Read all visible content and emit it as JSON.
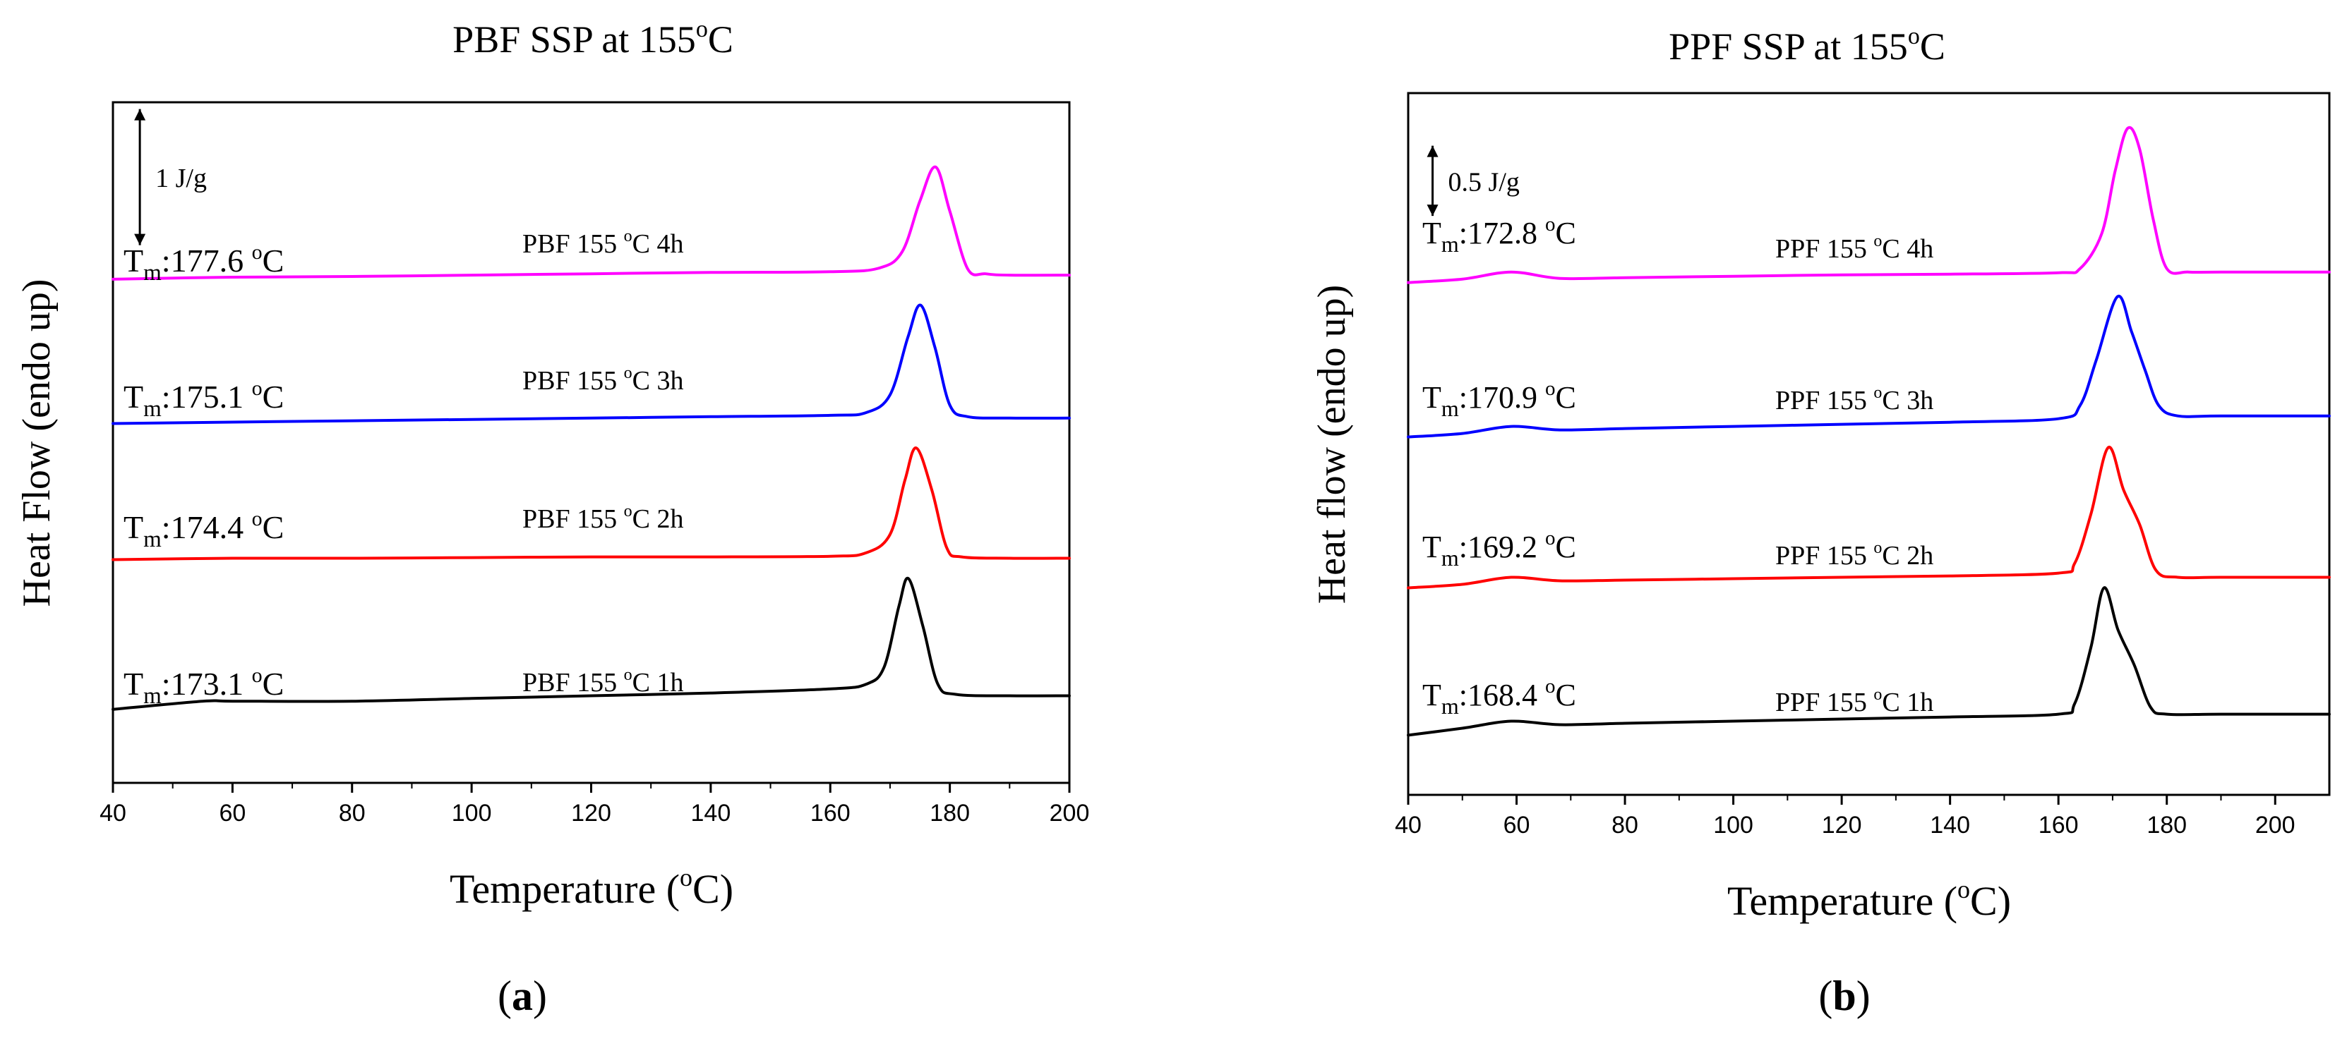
{
  "chart_data": [
    {
      "type": "line",
      "panel_label": "a",
      "title": "PBF SSP at 155°C",
      "title_main": "PBF SSP at 155",
      "title_sup": "o",
      "title_end": "C",
      "xlabel": "Temperature (°C)",
      "xlabel_main": "Temperature (",
      "xlabel_sup": "o",
      "xlabel_end": "C)",
      "ylabel": "Heat Flow (endo up)",
      "xlim": [
        40,
        200
      ],
      "ylim": [
        0,
        10
      ],
      "xticks": [
        40,
        60,
        80,
        100,
        120,
        140,
        160,
        180,
        200
      ],
      "yticks_shown": false,
      "grid": false,
      "scale_bar": {
        "label": "1 J/g",
        "value": 1,
        "y_center": 8.9,
        "x": 44.5
      },
      "series": [
        {
          "name": "PBF 155 °C 4h",
          "sample": "PBF 155 ",
          "deg": "o",
          "rest": "C 4h",
          "color": "#ff00ff",
          "peak_label": "177.6 °C",
          "tm": "177.6 ",
          "x": [
            40,
            60,
            80,
            100,
            120,
            140,
            160,
            168,
            172,
            175,
            177.6,
            180,
            183,
            186,
            190,
            200
          ],
          "y": [
            7.4,
            7.43,
            7.44,
            7.46,
            7.48,
            7.5,
            7.51,
            7.56,
            7.8,
            8.55,
            9.05,
            8.4,
            7.55,
            7.48,
            7.46,
            7.46
          ]
        },
        {
          "name": "PBF 155 °C 3h",
          "sample": "PBF 155 ",
          "deg": "o",
          "rest": "C 3h",
          "color": "#0000ff",
          "peak_label": "175.1 °C",
          "tm": "175.1 ",
          "x": [
            40,
            60,
            80,
            100,
            120,
            140,
            160,
            166,
            170,
            173,
            175.1,
            177.5,
            180,
            183,
            190,
            200
          ],
          "y": [
            5.28,
            5.3,
            5.32,
            5.34,
            5.36,
            5.38,
            5.4,
            5.44,
            5.7,
            6.55,
            7.02,
            6.4,
            5.55,
            5.38,
            5.36,
            5.36
          ]
        },
        {
          "name": "PBF 155 °C 2h",
          "sample": "PBF 155 ",
          "deg": "o",
          "rest": "C 2h",
          "color": "#ff0000",
          "peak_label": "174.4 °C",
          "tm": "174.4 ",
          "x": [
            40,
            60,
            80,
            100,
            120,
            140,
            160,
            166,
            170,
            172.5,
            174.4,
            177,
            179.5,
            182,
            190,
            200
          ],
          "y": [
            3.28,
            3.3,
            3.3,
            3.31,
            3.32,
            3.32,
            3.33,
            3.38,
            3.65,
            4.45,
            4.92,
            4.3,
            3.45,
            3.32,
            3.3,
            3.3
          ]
        },
        {
          "name": "PBF 155 °C 1h",
          "sample": "PBF 155 ",
          "deg": "o",
          "rest": "C 1h",
          "color": "#000000",
          "peak_label": "173.1 °C",
          "tm": "173.1 ",
          "x": [
            40,
            55,
            60,
            80,
            100,
            120,
            140,
            160,
            166,
            169,
            171.5,
            173.1,
            175.5,
            178,
            181,
            190,
            200
          ],
          "y": [
            1.08,
            1.2,
            1.2,
            1.2,
            1.24,
            1.28,
            1.32,
            1.38,
            1.45,
            1.7,
            2.6,
            3.0,
            2.3,
            1.45,
            1.3,
            1.28,
            1.28
          ]
        }
      ]
    },
    {
      "type": "line",
      "panel_label": "b",
      "title": "PPF SSP at 155°C",
      "title_main": "PPF SSP at 155",
      "title_sup": "o",
      "title_end": "C",
      "xlabel": "Temperature (°C)",
      "xlabel_main": "Temperature (",
      "xlabel_sup": "o",
      "xlabel_end": "C)",
      "ylabel": "Heat flow (endo up)",
      "xlim": [
        40,
        210
      ],
      "ylim": [
        0,
        10
      ],
      "xticks": [
        40,
        60,
        80,
        100,
        120,
        140,
        160,
        180,
        200
      ],
      "yticks_shown": false,
      "grid": false,
      "scale_bar": {
        "label": "0.5 J/g",
        "value": 0.5,
        "y_center": 8.75,
        "x": 44.5
      },
      "series": [
        {
          "name": "PPF 155 °C 4h",
          "sample": "PPF 155 ",
          "deg": "o",
          "rest": "C 4h",
          "color": "#ff00ff",
          "peak_label": "172.8 °C",
          "tm": "172.8 ",
          "x": [
            40,
            50,
            59,
            68,
            80,
            100,
            120,
            140,
            160,
            164,
            168,
            170.5,
            172.8,
            175,
            177.5,
            180,
            184,
            190,
            210
          ],
          "y": [
            7.3,
            7.35,
            7.45,
            7.36,
            7.37,
            7.39,
            7.41,
            7.42,
            7.44,
            7.5,
            8.0,
            8.9,
            9.5,
            9.2,
            8.2,
            7.5,
            7.45,
            7.45,
            7.45
          ]
        },
        {
          "name": "PPF 155 °C 3h",
          "sample": "PPF 155 ",
          "deg": "o",
          "rest": "C 3h",
          "color": "#0000ff",
          "peak_label": "170.9 °C",
          "tm": "170.9 ",
          "x": [
            40,
            50,
            59,
            68,
            80,
            100,
            120,
            140,
            160,
            164,
            167,
            170.9,
            173.5,
            176,
            178.5,
            182,
            190,
            210
          ],
          "y": [
            5.1,
            5.15,
            5.25,
            5.2,
            5.22,
            5.25,
            5.28,
            5.31,
            5.36,
            5.55,
            6.2,
            7.1,
            6.6,
            6.05,
            5.55,
            5.4,
            5.4,
            5.4
          ]
        },
        {
          "name": "PPF 155 °C 2h",
          "sample": "PPF 155 ",
          "deg": "o",
          "rest": "C 2h",
          "color": "#ff0000",
          "peak_label": "169.2 °C",
          "tm": "169.2 ",
          "x": [
            40,
            50,
            59,
            68,
            80,
            100,
            120,
            140,
            160,
            163,
            166,
            169.2,
            172,
            175,
            178,
            182,
            190,
            210
          ],
          "y": [
            2.95,
            3.0,
            3.1,
            3.05,
            3.06,
            3.08,
            3.1,
            3.12,
            3.16,
            3.3,
            4.0,
            4.95,
            4.35,
            3.85,
            3.2,
            3.1,
            3.1,
            3.1
          ]
        },
        {
          "name": "PPF 155 °C 1h",
          "sample": "PPF 155 ",
          "deg": "o",
          "rest": "C 1h",
          "color": "#000000",
          "peak_label": "168.4 °C",
          "tm": "168.4 ",
          "x": [
            40,
            50,
            59,
            68,
            80,
            100,
            120,
            140,
            160,
            163,
            166,
            168.4,
            171,
            174,
            177,
            180,
            190,
            210
          ],
          "y": [
            0.85,
            0.95,
            1.05,
            1.0,
            1.02,
            1.05,
            1.08,
            1.11,
            1.15,
            1.3,
            2.1,
            2.95,
            2.35,
            1.85,
            1.25,
            1.15,
            1.15,
            1.15
          ]
        }
      ]
    }
  ]
}
